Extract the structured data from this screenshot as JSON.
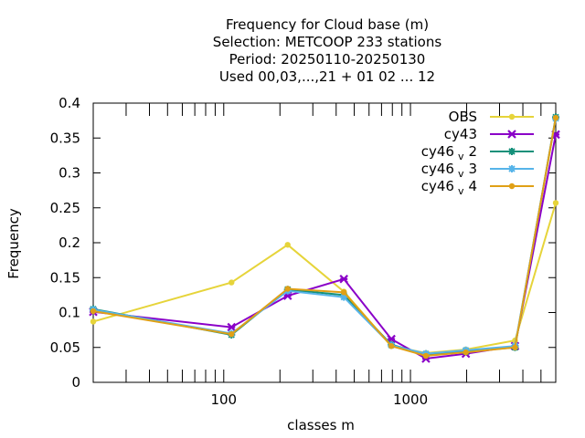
{
  "chart_data": {
    "type": "line",
    "title_lines": [
      "Frequency  for Cloud base (m)",
      "Selection: METCOOP    233 stations",
      "Period: 20250110-20250130",
      "Used  00,03,...,21  + 01 02 ... 12"
    ],
    "xlabel": "classes m",
    "ylabel": "Frequency",
    "xscale": "log",
    "xlim": [
      20,
      6000
    ],
    "ylim": [
      0,
      0.4
    ],
    "x_ticks": [
      100,
      1000
    ],
    "x_tick_labels": [
      "100",
      "1000"
    ],
    "x_minor_ticks": [
      30,
      40,
      50,
      60,
      70,
      80,
      90,
      200,
      300,
      400,
      500,
      600,
      700,
      800,
      900,
      2000,
      3000,
      4000,
      5000,
      6000
    ],
    "y_ticks": [
      0,
      0.05,
      0.1,
      0.15,
      0.2,
      0.25,
      0.3,
      0.35,
      0.4
    ],
    "y_tick_labels": [
      "0",
      "0.05",
      "0.1",
      "0.15",
      "0.2",
      "0.25",
      "0.3",
      "0.35",
      "0.4"
    ],
    "grid": false,
    "legend_position": "top-right",
    "x": [
      20,
      110,
      220,
      440,
      790,
      1210,
      1980,
      3630,
      6000
    ],
    "series": [
      {
        "name": "OBS",
        "color": "#e6d43a",
        "marker": "circle",
        "values": [
          0.087,
          0.143,
          0.197,
          0.13,
          0.052,
          0.042,
          0.047,
          0.06,
          0.257
        ]
      },
      {
        "name": "cy43",
        "color": "#8a00c8",
        "marker": "cross",
        "values": [
          0.101,
          0.079,
          0.124,
          0.148,
          0.062,
          0.034,
          0.041,
          0.052,
          0.355
        ]
      },
      {
        "name": "cy46",
        "name_sub": "v",
        "name_suffix": "2",
        "color": "#14907a",
        "marker": "star",
        "values": [
          0.105,
          0.068,
          0.133,
          0.125,
          0.054,
          0.04,
          0.044,
          0.05,
          0.38
        ]
      },
      {
        "name": "cy46",
        "name_sub": "v",
        "name_suffix": "3",
        "color": "#56b4e9",
        "marker": "star",
        "values": [
          0.104,
          0.07,
          0.131,
          0.122,
          0.053,
          0.041,
          0.046,
          0.052,
          0.378
        ]
      },
      {
        "name": "cy46",
        "name_sub": "v",
        "name_suffix": "4",
        "color": "#e0a016",
        "marker": "circle",
        "values": [
          0.102,
          0.069,
          0.134,
          0.129,
          0.052,
          0.038,
          0.043,
          0.05,
          0.379
        ]
      }
    ]
  }
}
